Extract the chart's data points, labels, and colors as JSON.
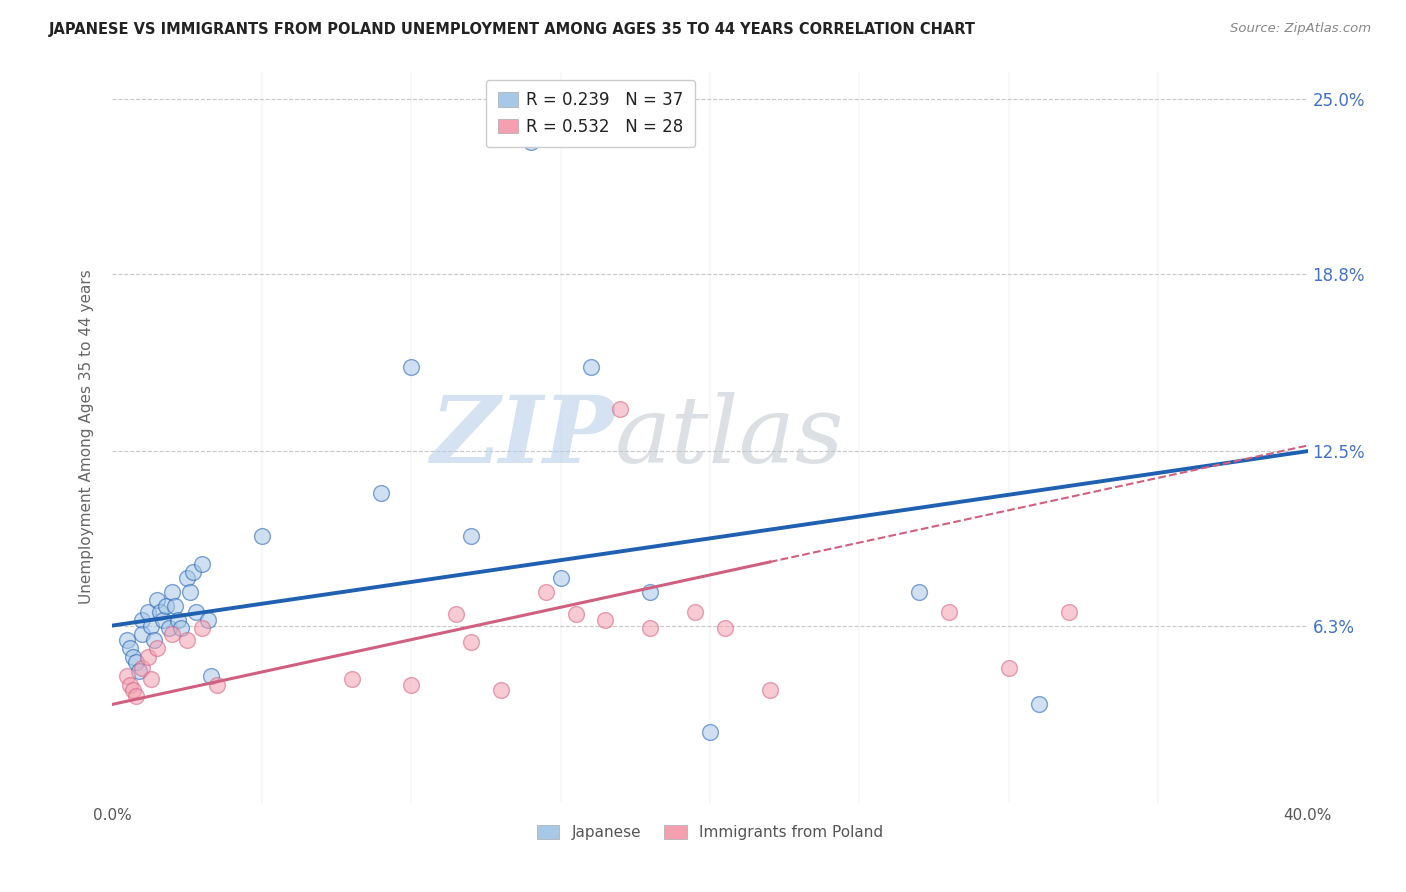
{
  "title": "JAPANESE VS IMMIGRANTS FROM POLAND UNEMPLOYMENT AMONG AGES 35 TO 44 YEARS CORRELATION CHART",
  "source": "Source: ZipAtlas.com",
  "ylabel": "Unemployment Among Ages 35 to 44 years",
  "xlim": [
    0,
    0.4
  ],
  "ylim": [
    0,
    0.26
  ],
  "ytick_labels_right": [
    "6.3%",
    "12.5%",
    "18.8%",
    "25.0%"
  ],
  "ytick_positions_right": [
    0.063,
    0.125,
    0.188,
    0.25
  ],
  "blue_color": "#a8c8e8",
  "pink_color": "#f4a0b0",
  "blue_line_color": "#2060b0",
  "pink_line_color": "#d06080",
  "legend_R1": "R = 0.239",
  "legend_N1": "N = 37",
  "legend_R2": "R = 0.532",
  "legend_N2": "N = 28",
  "watermark_zip": "ZIP",
  "watermark_atlas": "atlas",
  "japanese_x": [
    0.005,
    0.006,
    0.007,
    0.008,
    0.009,
    0.01,
    0.01,
    0.012,
    0.013,
    0.014,
    0.015,
    0.016,
    0.017,
    0.018,
    0.019,
    0.02,
    0.021,
    0.022,
    0.023,
    0.025,
    0.026,
    0.027,
    0.028,
    0.03,
    0.032,
    0.033,
    0.05,
    0.09,
    0.1,
    0.12,
    0.14,
    0.15,
    0.16,
    0.18,
    0.2,
    0.27,
    0.31
  ],
  "japanese_y": [
    0.058,
    0.055,
    0.052,
    0.05,
    0.047,
    0.065,
    0.06,
    0.068,
    0.063,
    0.058,
    0.072,
    0.068,
    0.065,
    0.07,
    0.062,
    0.075,
    0.07,
    0.065,
    0.062,
    0.08,
    0.075,
    0.082,
    0.068,
    0.085,
    0.065,
    0.045,
    0.095,
    0.11,
    0.155,
    0.095,
    0.235,
    0.08,
    0.155,
    0.075,
    0.025,
    0.075,
    0.035
  ],
  "polish_x": [
    0.005,
    0.006,
    0.007,
    0.008,
    0.01,
    0.012,
    0.013,
    0.015,
    0.02,
    0.025,
    0.03,
    0.035,
    0.08,
    0.1,
    0.115,
    0.12,
    0.13,
    0.145,
    0.155,
    0.165,
    0.17,
    0.18,
    0.195,
    0.205,
    0.22,
    0.28,
    0.3,
    0.32
  ],
  "polish_y": [
    0.045,
    0.042,
    0.04,
    0.038,
    0.048,
    0.052,
    0.044,
    0.055,
    0.06,
    0.058,
    0.062,
    0.042,
    0.044,
    0.042,
    0.067,
    0.057,
    0.04,
    0.075,
    0.067,
    0.065,
    0.14,
    0.062,
    0.068,
    0.062,
    0.04,
    0.068,
    0.048,
    0.068
  ],
  "blue_intercept": 0.063,
  "blue_slope": 0.155,
  "pink_intercept": 0.035,
  "pink_slope": 0.23
}
